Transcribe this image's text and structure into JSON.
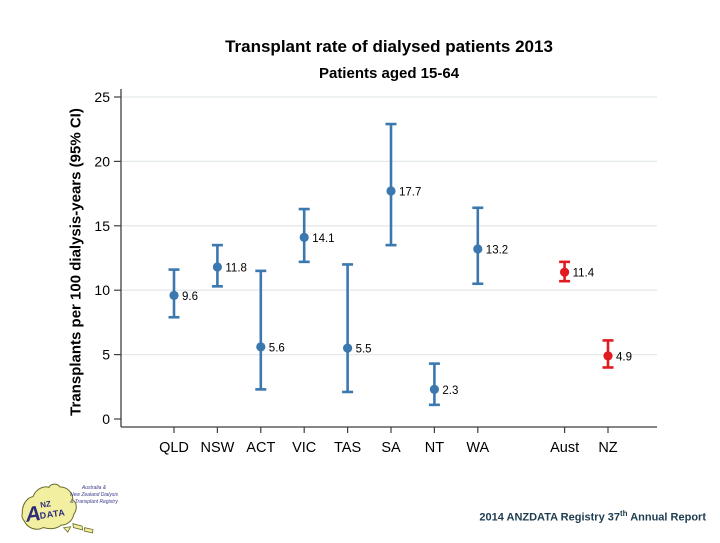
{
  "footer": {
    "prefix": "2014 ANZDATA Registry 37",
    "sup": "th",
    "suffix": " Annual Report"
  },
  "logo": {
    "letter_a": "A",
    "nz": "NZ",
    "data_word": "DATA",
    "caption_line1": "Australia &",
    "caption_line2": "New Zealand Dialysis",
    "caption_line3": "& Transplant Registry"
  },
  "chart_data": {
    "type": "scatter",
    "title": "Transplant rate of dialysed patients 2013",
    "subtitle": "Patients aged 15-64",
    "ylabel": "Transplants per 100 dialysis-years (95% CI)",
    "xlabel": "",
    "ylim": [
      0,
      25
    ],
    "yticks": [
      0,
      5,
      10,
      15,
      20,
      25
    ],
    "grid": true,
    "legend": "none",
    "error_bars": "95% CI",
    "colors": {
      "state": "#3b78b0",
      "national": "#e11b20"
    },
    "grid_color": "#e4eaea",
    "axis_color": "#3f3f3f",
    "series": [
      {
        "label": "QLD",
        "value": 9.6,
        "ci_low": 7.9,
        "ci_high": 11.6,
        "group": "state"
      },
      {
        "label": "NSW",
        "value": 11.8,
        "ci_low": 10.3,
        "ci_high": 13.5,
        "group": "state"
      },
      {
        "label": "ACT",
        "value": 5.6,
        "ci_low": 2.3,
        "ci_high": 11.5,
        "group": "state"
      },
      {
        "label": "VIC",
        "value": 14.1,
        "ci_low": 12.2,
        "ci_high": 16.3,
        "group": "state"
      },
      {
        "label": "TAS",
        "value": 5.5,
        "ci_low": 2.1,
        "ci_high": 12.0,
        "group": "state"
      },
      {
        "label": "SA",
        "value": 17.7,
        "ci_low": 13.5,
        "ci_high": 22.9,
        "group": "state"
      },
      {
        "label": "NT",
        "value": 2.3,
        "ci_low": 1.1,
        "ci_high": 4.3,
        "group": "state"
      },
      {
        "label": "WA",
        "value": 13.2,
        "ci_low": 10.5,
        "ci_high": 16.4,
        "group": "state"
      },
      {
        "label": "Aust",
        "value": 11.4,
        "ci_low": 10.7,
        "ci_high": 12.2,
        "group": "national"
      },
      {
        "label": "NZ",
        "value": 4.9,
        "ci_low": 4.0,
        "ci_high": 6.1,
        "group": "national"
      }
    ]
  }
}
